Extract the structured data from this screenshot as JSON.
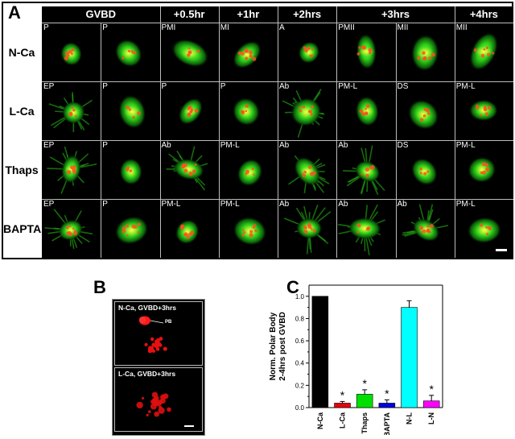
{
  "panels": {
    "a_letter": "A",
    "b_letter": "B",
    "c_letter": "C"
  },
  "panel_a": {
    "column_groups": [
      {
        "label": "GVBD",
        "span": 2
      },
      {
        "label": "+0.5hr",
        "span": 1
      },
      {
        "label": "+1hr",
        "span": 1
      },
      {
        "label": "+2hrs",
        "span": 1
      },
      {
        "label": "+3hrs",
        "span": 2
      },
      {
        "label": "+4hrs",
        "span": 1
      }
    ],
    "rows": [
      {
        "label": "N-Ca",
        "cells": [
          "P",
          "P",
          "PMI",
          "MI",
          "A",
          "PMII",
          "MII",
          "MII"
        ]
      },
      {
        "label": "L-Ca",
        "cells": [
          "EP",
          "P",
          "P",
          "P",
          "Ab",
          "PM-L",
          "DS",
          "PM-L"
        ]
      },
      {
        "label": "Thaps",
        "cells": [
          "EP",
          "P",
          "Ab",
          "PM-L",
          "Ab",
          "Ab",
          "DS",
          "PM-L"
        ]
      },
      {
        "label": "BAPTA",
        "cells": [
          "EP",
          "P",
          "PM-L",
          "PM-L",
          "Ab",
          "Ab",
          "Ab",
          "PM-L"
        ]
      }
    ]
  },
  "panel_b": {
    "top_label": "N-Ca, GVBD+3hrs",
    "pb_label": "PB",
    "bottom_label": "L-Ca, GVBD+3hrs"
  },
  "chart_data": {
    "type": "bar",
    "ylabel": "Norm. Polar Body\n2-4hrs post GVBD",
    "ylabel_lines": [
      "Norm. Polar Body",
      "2-4hrs post GVBD"
    ],
    "ylim": [
      0,
      1.1
    ],
    "yticks": [
      "0.0",
      "0.2",
      "0.4",
      "0.6",
      "0.8",
      "1.0"
    ],
    "categories": [
      "N-Ca",
      "L-Ca",
      "Thaps",
      "BAPTA",
      "N-L",
      "L-N"
    ],
    "values": [
      1.0,
      0.04,
      0.12,
      0.04,
      0.9,
      0.06
    ],
    "errors": [
      0,
      0.015,
      0.04,
      0.03,
      0.06,
      0.05
    ],
    "significant": [
      false,
      true,
      true,
      true,
      false,
      true
    ],
    "sig_marker": "*",
    "colors": [
      "#000000",
      "#e8000b",
      "#00e000",
      "#0000e0",
      "#00ffff",
      "#ff00ff"
    ]
  }
}
